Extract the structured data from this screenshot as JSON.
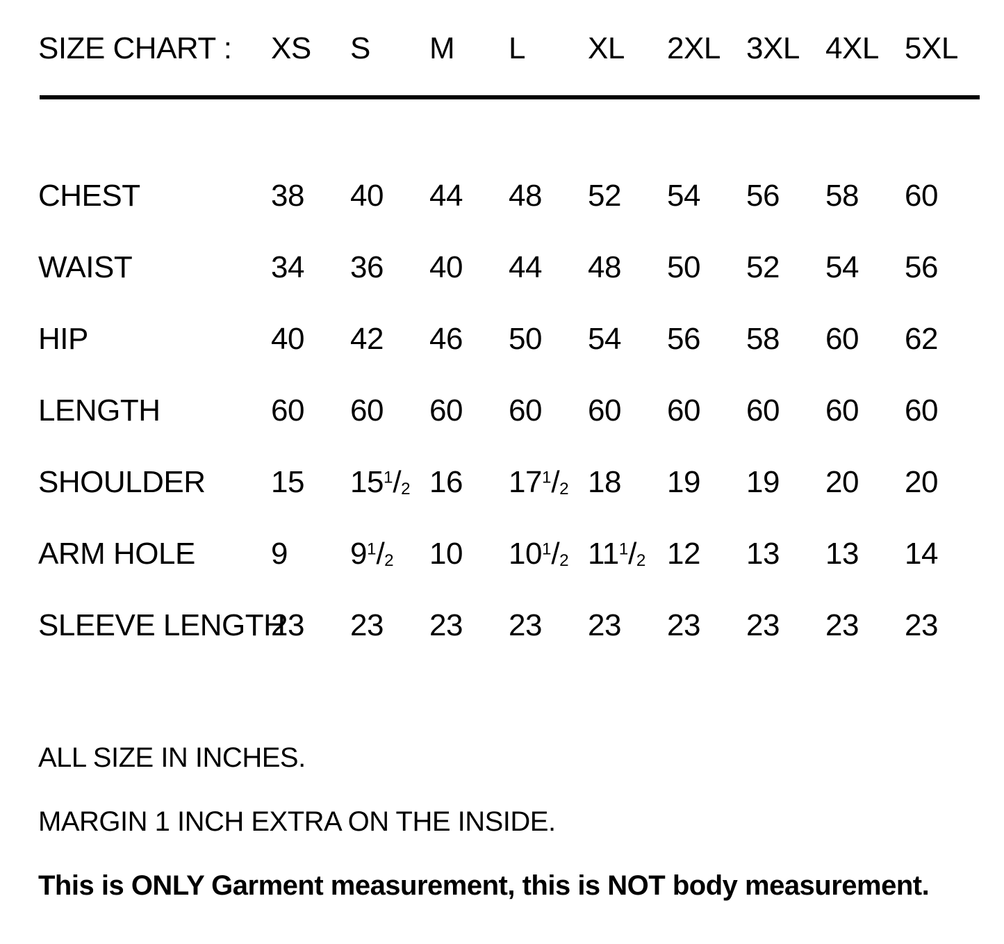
{
  "colors": {
    "background": "#ffffff",
    "text": "#000000",
    "divider": "#000000"
  },
  "size_chart": {
    "title_label": "SIZE CHART :",
    "sizes": [
      "XS",
      "S",
      "M",
      "L",
      "XL",
      "2XL",
      "3XL",
      "4XL",
      "5XL"
    ],
    "rows": [
      {
        "label": "CHEST",
        "values": [
          "38",
          "40",
          "44",
          "48",
          "52",
          "54",
          "56",
          "58",
          "60"
        ]
      },
      {
        "label": "WAIST",
        "values": [
          "34",
          "36",
          "40",
          "44",
          "48",
          "50",
          "52",
          "54",
          "56"
        ]
      },
      {
        "label": "HIP",
        "values": [
          "40",
          "42",
          "46",
          "50",
          "54",
          "56",
          "58",
          "60",
          "62"
        ]
      },
      {
        "label": "LENGTH",
        "values": [
          "60",
          "60",
          "60",
          "60",
          "60",
          "60",
          "60",
          "60",
          "60"
        ]
      },
      {
        "label": "SHOULDER",
        "values": [
          "15",
          "15 1/2",
          "16",
          "17 1/2",
          "18",
          "19",
          "19",
          "20",
          "20"
        ]
      },
      {
        "label": "ARM HOLE",
        "values": [
          "9",
          "9 1/2",
          "10",
          "10 1/2",
          "11 1/2",
          "12",
          "13",
          "13",
          "14"
        ]
      },
      {
        "label": "SLEEVE LENGTH",
        "values": [
          "23",
          "23",
          "23",
          "23",
          "23",
          "23",
          "23",
          "23",
          "23"
        ]
      }
    ]
  },
  "notes": {
    "units": "ALL SIZE IN INCHES.",
    "margin": "MARGIN 1 INCH EXTRA ON THE INSIDE.",
    "disclaimer": "This is ONLY Garment measurement, this is NOT body measurement."
  },
  "chart_data": {
    "type": "table",
    "title": "SIZE CHART :",
    "columns": [
      "XS",
      "S",
      "M",
      "L",
      "XL",
      "2XL",
      "3XL",
      "4XL",
      "5XL"
    ],
    "row_labels": [
      "CHEST",
      "WAIST",
      "HIP",
      "LENGTH",
      "SHOULDER",
      "ARM HOLE",
      "SLEEVE LENGTH"
    ],
    "values": [
      [
        38,
        40,
        44,
        48,
        52,
        54,
        56,
        58,
        60
      ],
      [
        34,
        36,
        40,
        44,
        48,
        50,
        52,
        54,
        56
      ],
      [
        40,
        42,
        46,
        50,
        54,
        56,
        58,
        60,
        62
      ],
      [
        60,
        60,
        60,
        60,
        60,
        60,
        60,
        60,
        60
      ],
      [
        15,
        15.5,
        16,
        17.5,
        18,
        19,
        19,
        20,
        20
      ],
      [
        9,
        9.5,
        10,
        10.5,
        11.5,
        12,
        13,
        13,
        14
      ],
      [
        23,
        23,
        23,
        23,
        23,
        23,
        23,
        23,
        23
      ]
    ],
    "units": "inches"
  }
}
